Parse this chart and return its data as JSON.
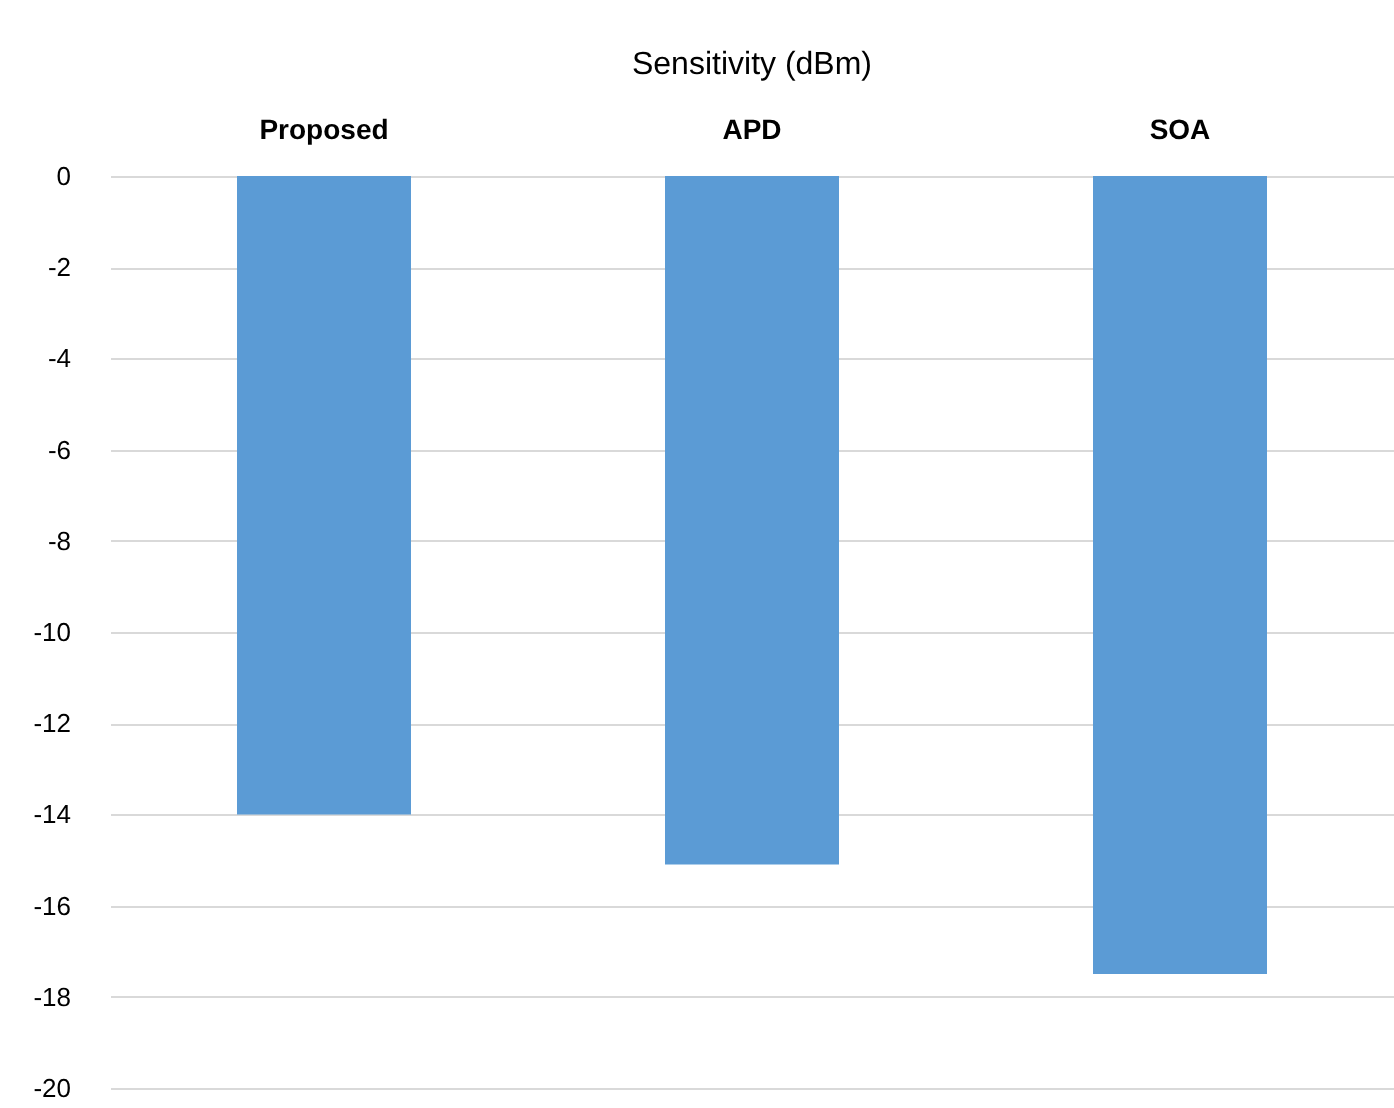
{
  "chart_data": {
    "type": "bar",
    "title": "Sensitivity (dBm)",
    "categories": [
      "Proposed",
      "APD",
      "SOA"
    ],
    "values": [
      -14,
      -15.1,
      -17.5
    ],
    "color": "#5b9bd5",
    "ylim": [
      -20,
      0
    ],
    "yticks": [
      0,
      -2,
      -4,
      -6,
      -8,
      -10,
      -12,
      -14,
      -16,
      -18,
      -20
    ],
    "grid": "y"
  }
}
